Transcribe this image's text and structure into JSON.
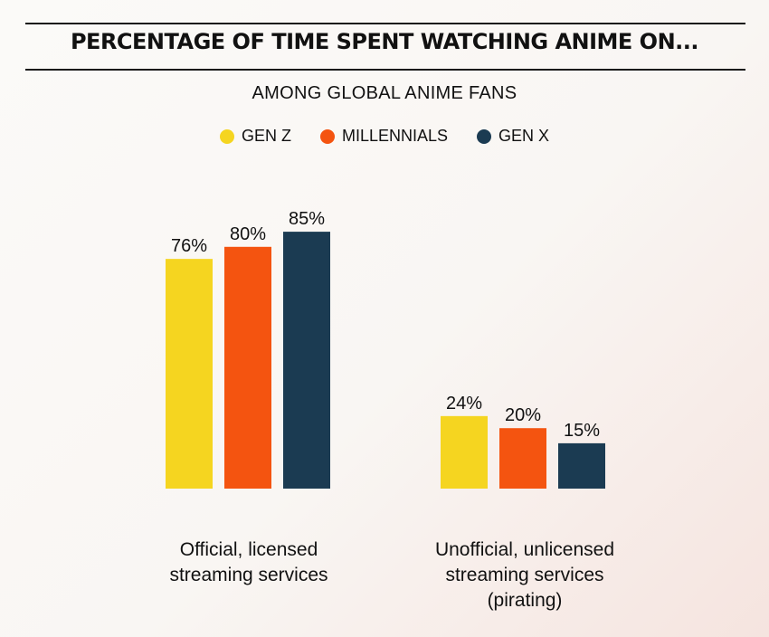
{
  "title": "PERCENTAGE OF TIME SPENT WATCHING ANIME ON...",
  "subtitle": "AMONG GLOBAL ANIME FANS",
  "colors": {
    "gen_z": "#f5d520",
    "millennials": "#f45410",
    "gen_x": "#1b3b52"
  },
  "chart_data": {
    "type": "bar",
    "title": "PERCENTAGE OF TIME SPENT WATCHING ANIME ON...",
    "subtitle": "AMONG GLOBAL ANIME FANS",
    "categories": [
      "Official, licensed streaming services",
      "Unofficial, unlicensed streaming services (pirating)"
    ],
    "series": [
      {
        "name": "GEN Z",
        "color": "#f5d520",
        "values": [
          76,
          24
        ],
        "labels": [
          "76%",
          "24%"
        ]
      },
      {
        "name": "MILLENNIALS",
        "color": "#f45410",
        "values": [
          80,
          20
        ],
        "labels": [
          "80%",
          "20%"
        ]
      },
      {
        "name": "GEN X",
        "color": "#1b3b52",
        "values": [
          85,
          15
        ],
        "labels": [
          "85%",
          "15%"
        ]
      }
    ],
    "ylim": [
      0,
      100
    ],
    "grid": false,
    "legend": "top-center",
    "xlabel": "",
    "ylabel": ""
  },
  "category_labels": {
    "official": [
      "Official, licensed",
      "streaming services"
    ],
    "unofficial": [
      "Unofficial, unlicensed",
      "streaming services",
      "(pirating)"
    ]
  }
}
